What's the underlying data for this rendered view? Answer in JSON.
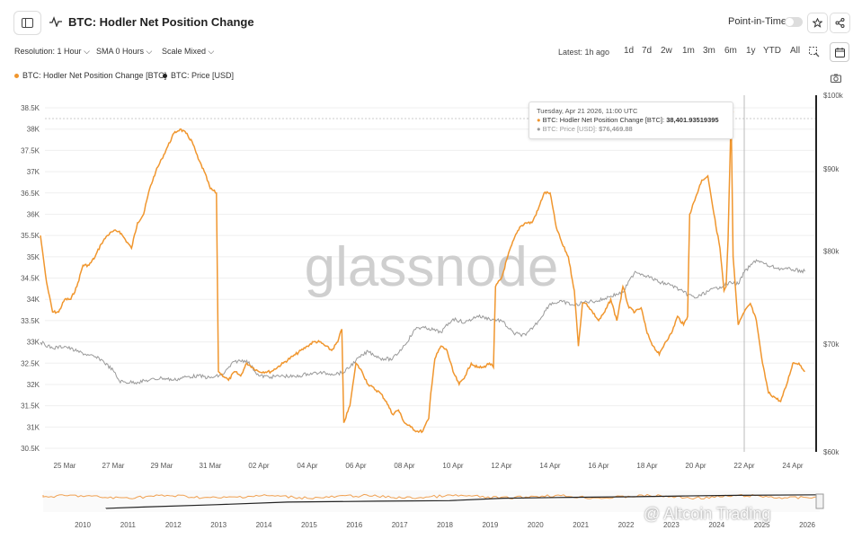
{
  "header": {
    "title": "BTC: Hodler Net Position Change",
    "point_in_time_label": "Point-in-Time"
  },
  "toolbar": {
    "resolution": "Resolution: 1 Hour",
    "sma": "SMA 0 Hours",
    "scale": "Scale Mixed",
    "latest": "Latest: 1h ago",
    "ranges": [
      "1d",
      "7d",
      "2w",
      "1m",
      "3m",
      "6m",
      "1y",
      "YTD",
      "All"
    ]
  },
  "legend": {
    "series1": "BTC: Hodler Net Position Change [BTC]",
    "series2": "BTC: Price [USD]"
  },
  "tooltip": {
    "date": "Tuesday, Apr 21 2026, 11:00 UTC",
    "row1_label": "BTC: Hodler Net Position Change [BTC]: ",
    "row1_value": "38,401.93519395",
    "row2_label": "BTC: Price [USD]: ",
    "row2_value": "$76,469.88"
  },
  "watermark": "glassnode",
  "overlay_watermark": "@ Altcoin Trading",
  "colors": {
    "hodler": "#f0962e",
    "price": "#9a9a9a",
    "nav_price": "#222222"
  },
  "chart_data": {
    "type": "line",
    "left_axis": {
      "ticks": [
        "38.5K",
        "38K",
        "37.5K",
        "37K",
        "36.5K",
        "36K",
        "35.5K",
        "35K",
        "34.5K",
        "34K",
        "33.5K",
        "33K",
        "32.5K",
        "32K",
        "31.5K",
        "31K",
        "30.5K"
      ],
      "range": [
        30400,
        38700
      ]
    },
    "right_axis": {
      "ticks": [
        "$100k",
        "$90k",
        "$80k",
        "$70k",
        "$60k"
      ],
      "scale": "log",
      "range": [
        60000,
        100000
      ]
    },
    "x_ticks": [
      "25 Mar",
      "27 Mar",
      "29 Mar",
      "31 Mar",
      "02 Apr",
      "04 Apr",
      "06 Apr",
      "08 Apr",
      "10 Apr",
      "12 Apr",
      "14 Apr",
      "16 Apr",
      "18 Apr",
      "20 Apr",
      "22 Apr",
      "24 Apr"
    ],
    "series": [
      {
        "name": "BTC: Hodler Net Position Change [BTC]",
        "axis": "left",
        "points": [
          [
            "03-24 00:00",
            35500
          ],
          [
            "03-24 06:00",
            34400
          ],
          [
            "03-24 12:00",
            33700
          ],
          [
            "03-24 18:00",
            33700
          ],
          [
            "03-25 00:00",
            34000
          ],
          [
            "03-25 06:00",
            34000
          ],
          [
            "03-25 12:00",
            34300
          ],
          [
            "03-25 18:00",
            34800
          ],
          [
            "03-26 00:00",
            34800
          ],
          [
            "03-26 06:00",
            35000
          ],
          [
            "03-26 12:00",
            35300
          ],
          [
            "03-26 18:00",
            35500
          ],
          [
            "03-27 00:00",
            35600
          ],
          [
            "03-27 06:00",
            35600
          ],
          [
            "03-27 12:00",
            35400
          ],
          [
            "03-27 18:00",
            35200
          ],
          [
            "03-28 00:00",
            35800
          ],
          [
            "03-28 06:00",
            36000
          ],
          [
            "03-28 12:00",
            36600
          ],
          [
            "03-28 18:00",
            37000
          ],
          [
            "03-29 00:00",
            37300
          ],
          [
            "03-29 06:00",
            37600
          ],
          [
            "03-29 12:00",
            37900
          ],
          [
            "03-29 18:00",
            38000
          ],
          [
            "03-30 00:00",
            37900
          ],
          [
            "03-30 06:00",
            37700
          ],
          [
            "03-30 12:00",
            37300
          ],
          [
            "03-30 18:00",
            37000
          ],
          [
            "03-31 00:00",
            36600
          ],
          [
            "03-31 06:00",
            36500
          ],
          [
            "03-31 08:00",
            32300
          ],
          [
            "03-31 18:00",
            32100
          ],
          [
            "04-01 00:00",
            32300
          ],
          [
            "04-01 06:00",
            32200
          ],
          [
            "04-01 12:00",
            32500
          ],
          [
            "04-02 00:00",
            32300
          ],
          [
            "04-02 12:00",
            32300
          ],
          [
            "04-03 00:00",
            32500
          ],
          [
            "04-03 12:00",
            32700
          ],
          [
            "04-04 00:00",
            32900
          ],
          [
            "04-04 06:00",
            33000
          ],
          [
            "04-04 12:00",
            33000
          ],
          [
            "04-05 00:00",
            32800
          ],
          [
            "04-05 06:00",
            33000
          ],
          [
            "04-05 10:00",
            33300
          ],
          [
            "04-05 12:00",
            31100
          ],
          [
            "04-05 18:00",
            31500
          ],
          [
            "04-06 00:00",
            32500
          ],
          [
            "04-06 06:00",
            32300
          ],
          [
            "04-06 12:00",
            32000
          ],
          [
            "04-07 00:00",
            31800
          ],
          [
            "04-07 06:00",
            31600
          ],
          [
            "04-07 12:00",
            31300
          ],
          [
            "04-07 18:00",
            31400
          ],
          [
            "04-08 00:00",
            31100
          ],
          [
            "04-08 06:00",
            31000
          ],
          [
            "04-08 12:00",
            30900
          ],
          [
            "04-08 18:00",
            30900
          ],
          [
            "04-09 00:00",
            31200
          ],
          [
            "04-09 02:00",
            31800
          ],
          [
            "04-09 06:00",
            32600
          ],
          [
            "04-09 12:00",
            32900
          ],
          [
            "04-09 18:00",
            32800
          ],
          [
            "04-10 00:00",
            32300
          ],
          [
            "04-10 06:00",
            32000
          ],
          [
            "04-10 12:00",
            32200
          ],
          [
            "04-10 18:00",
            32500
          ],
          [
            "04-11 00:00",
            32400
          ],
          [
            "04-11 06:00",
            32400
          ],
          [
            "04-11 12:00",
            32500
          ],
          [
            "04-11 16:00",
            32400
          ],
          [
            "04-11 18:00",
            34300
          ],
          [
            "04-12 00:00",
            34500
          ],
          [
            "04-12 06:00",
            35000
          ],
          [
            "04-12 12:00",
            35400
          ],
          [
            "04-12 18:00",
            35700
          ],
          [
            "04-13 00:00",
            35800
          ],
          [
            "04-13 06:00",
            35800
          ],
          [
            "04-13 12:00",
            36100
          ],
          [
            "04-13 18:00",
            36500
          ],
          [
            "04-14 00:00",
            36500
          ],
          [
            "04-14 06:00",
            35700
          ],
          [
            "04-14 12:00",
            35300
          ],
          [
            "04-14 18:00",
            35000
          ],
          [
            "04-15 00:00",
            34200
          ],
          [
            "04-15 04:00",
            32900
          ],
          [
            "04-15 08:00",
            33900
          ],
          [
            "04-15 12:00",
            33900
          ],
          [
            "04-16 00:00",
            33500
          ],
          [
            "04-16 06:00",
            33700
          ],
          [
            "04-16 12:00",
            34000
          ],
          [
            "04-16 18:00",
            33500
          ],
          [
            "04-17 00:00",
            34300
          ],
          [
            "04-17 06:00",
            33800
          ],
          [
            "04-17 12:00",
            33700
          ],
          [
            "04-17 18:00",
            33800
          ],
          [
            "04-18 00:00",
            33200
          ],
          [
            "04-18 06:00",
            32900
          ],
          [
            "04-18 12:00",
            32700
          ],
          [
            "04-18 18:00",
            33000
          ],
          [
            "04-19 00:00",
            33200
          ],
          [
            "04-19 06:00",
            33600
          ],
          [
            "04-19 12:00",
            33400
          ],
          [
            "04-19 16:00",
            33600
          ],
          [
            "04-19 18:00",
            36000
          ],
          [
            "04-20 00:00",
            36400
          ],
          [
            "04-20 06:00",
            36800
          ],
          [
            "04-20 12:00",
            36900
          ],
          [
            "04-20 18:00",
            36000
          ],
          [
            "04-21 00:00",
            35200
          ],
          [
            "04-21 04:00",
            34200
          ],
          [
            "04-21 06:00",
            34300
          ],
          [
            "04-21 08:00",
            35400
          ],
          [
            "04-21 11:00",
            38401.93519395
          ],
          [
            "04-21 13:00",
            35000
          ],
          [
            "04-21 18:00",
            33400
          ],
          [
            "04-22 00:00",
            33700
          ],
          [
            "04-22 06:00",
            33900
          ],
          [
            "04-22 12:00",
            33500
          ],
          [
            "04-22 18:00",
            32500
          ],
          [
            "04-23 00:00",
            31800
          ],
          [
            "04-23 06:00",
            31700
          ],
          [
            "04-23 12:00",
            31600
          ],
          [
            "04-23 18:00",
            32000
          ],
          [
            "04-24 00:00",
            32500
          ],
          [
            "04-24 06:00",
            32500
          ],
          [
            "04-24 12:00",
            32300
          ]
        ]
      },
      {
        "name": "BTC: Price [USD]",
        "axis": "right",
        "points": [
          [
            "03-24 00:00",
            70200
          ],
          [
            "03-24 12:00",
            69600
          ],
          [
            "03-25 00:00",
            69800
          ],
          [
            "03-25 12:00",
            69300
          ],
          [
            "03-26 00:00",
            68900
          ],
          [
            "03-26 12:00",
            68500
          ],
          [
            "03-27 00:00",
            67400
          ],
          [
            "03-27 06:00",
            66400
          ],
          [
            "03-27 12:00",
            66300
          ],
          [
            "03-28 00:00",
            66300
          ],
          [
            "03-28 12:00",
            66500
          ],
          [
            "03-29 00:00",
            66700
          ],
          [
            "03-29 12:00",
            66500
          ],
          [
            "03-30 00:00",
            66800
          ],
          [
            "03-30 12:00",
            66900
          ],
          [
            "03-31 00:00",
            66700
          ],
          [
            "03-31 12:00",
            67000
          ],
          [
            "04-01 00:00",
            68300
          ],
          [
            "04-01 12:00",
            68400
          ],
          [
            "04-02 00:00",
            66900
          ],
          [
            "04-02 12:00",
            66800
          ],
          [
            "04-03 00:00",
            66900
          ],
          [
            "04-03 12:00",
            66800
          ],
          [
            "04-04 00:00",
            67100
          ],
          [
            "04-04 12:00",
            67200
          ],
          [
            "04-05 00:00",
            67100
          ],
          [
            "04-05 12:00",
            67200
          ],
          [
            "04-06 00:00",
            68400
          ],
          [
            "04-06 12:00",
            69300
          ],
          [
            "04-07 00:00",
            68600
          ],
          [
            "04-07 12:00",
            68500
          ],
          [
            "04-08 00:00",
            69900
          ],
          [
            "04-08 12:00",
            71700
          ],
          [
            "04-09 00:00",
            71600
          ],
          [
            "04-09 12:00",
            71200
          ],
          [
            "04-10 00:00",
            72600
          ],
          [
            "04-10 12:00",
            72200
          ],
          [
            "04-11 00:00",
            72900
          ],
          [
            "04-11 12:00",
            72600
          ],
          [
            "04-12 00:00",
            72400
          ],
          [
            "04-12 12:00",
            71100
          ],
          [
            "04-13 00:00",
            70900
          ],
          [
            "04-13 12:00",
            72300
          ],
          [
            "04-14 00:00",
            74200
          ],
          [
            "04-14 12:00",
            74400
          ],
          [
            "04-15 00:00",
            74000
          ],
          [
            "04-15 12:00",
            74400
          ],
          [
            "04-16 00:00",
            74500
          ],
          [
            "04-16 12:00",
            75000
          ],
          [
            "04-17 00:00",
            75400
          ],
          [
            "04-17 12:00",
            77700
          ],
          [
            "04-18 00:00",
            77200
          ],
          [
            "04-18 12:00",
            76500
          ],
          [
            "04-19 00:00",
            76200
          ],
          [
            "04-19 12:00",
            75400
          ],
          [
            "04-20 00:00",
            74800
          ],
          [
            "04-20 12:00",
            75500
          ],
          [
            "04-21 00:00",
            76000
          ],
          [
            "04-21 11:00",
            76469.88
          ],
          [
            "04-21 18:00",
            76300
          ],
          [
            "04-22 00:00",
            77600
          ],
          [
            "04-22 12:00",
            79000
          ],
          [
            "04-23 00:00",
            78300
          ],
          [
            "04-23 12:00",
            78000
          ],
          [
            "04-24 00:00",
            77900
          ],
          [
            "04-24 12:00",
            77700
          ]
        ]
      }
    ],
    "navigator_years": [
      "2010",
      "2011",
      "2012",
      "2013",
      "2014",
      "2015",
      "2016",
      "2017",
      "2018",
      "2019",
      "2020",
      "2021",
      "2022",
      "2023",
      "2024",
      "2025",
      "2026"
    ],
    "grid": true,
    "legend_position": "top-left"
  }
}
